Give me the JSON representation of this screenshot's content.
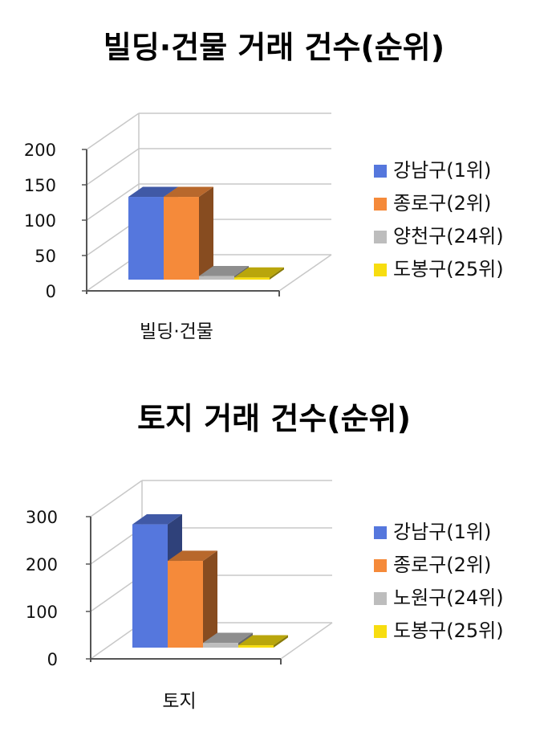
{
  "colors": {
    "blue": "#5577dd",
    "orange": "#f58a3a",
    "gray": "#bdbdbd",
    "yellow": "#f7dd10",
    "gridline": "#c8c8c8",
    "axis": "#555555"
  },
  "chart_data": [
    {
      "type": "bar",
      "title": "빌딩·건물 거래 건수(순위)",
      "categories": [
        "빌딩·건물"
      ],
      "ylim": [
        0,
        200
      ],
      "yticks": [
        "0",
        "50",
        "100",
        "150",
        "200"
      ],
      "grid": true,
      "legend_position": "right",
      "series": [
        {
          "name": "강남구(1위)",
          "values": [
            117
          ],
          "color": "#5577dd"
        },
        {
          "name": "종로구(2위)",
          "values": [
            117
          ],
          "color": "#f58a3a"
        },
        {
          "name": "양천구(24위)",
          "values": [
            5
          ],
          "color": "#bdbdbd"
        },
        {
          "name": "도봉구(25위)",
          "values": [
            3
          ],
          "color": "#f7dd10"
        }
      ]
    },
    {
      "type": "bar",
      "title": "토지 거래 건수(순위)",
      "categories": [
        "토지"
      ],
      "ylim": [
        0,
        300
      ],
      "yticks": [
        "0",
        "100",
        "200",
        "300"
      ],
      "grid": true,
      "legend_position": "right",
      "series": [
        {
          "name": "강남구(1위)",
          "values": [
            260
          ],
          "color": "#5577dd"
        },
        {
          "name": "종로구(2위)",
          "values": [
            183
          ],
          "color": "#f58a3a"
        },
        {
          "name": "노원구(24위)",
          "values": [
            10
          ],
          "color": "#bdbdbd"
        },
        {
          "name": "도봉구(25위)",
          "values": [
            5
          ],
          "color": "#f7dd10"
        }
      ]
    }
  ]
}
